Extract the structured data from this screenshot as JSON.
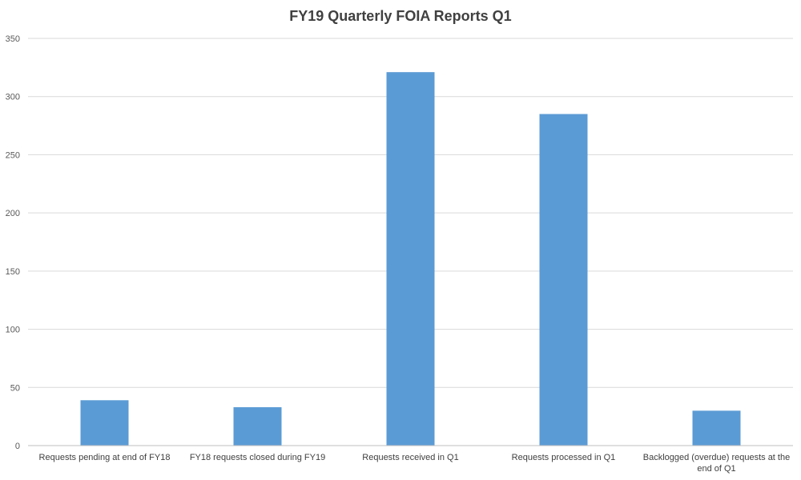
{
  "chart_data": {
    "type": "bar",
    "title": "FY19 Quarterly  FOIA Reports Q1",
    "categories": [
      "Requests pending at end of FY18",
      "FY18 requests closed during FY19",
      "Requests received in Q1",
      "Requests processed in Q1",
      "Backlogged (overdue) requests at the end of Q1"
    ],
    "values": [
      39,
      33,
      321,
      285,
      30
    ],
    "ylim": [
      0,
      350
    ],
    "yticks": [
      0,
      50,
      100,
      150,
      200,
      250,
      300,
      350
    ],
    "xlabel": "",
    "ylabel": "",
    "grid": true,
    "legend": "none",
    "colors": {
      "bar": "#5B9BD5",
      "grid": "#D9D9D9",
      "axis": "#BFBFBF"
    }
  }
}
